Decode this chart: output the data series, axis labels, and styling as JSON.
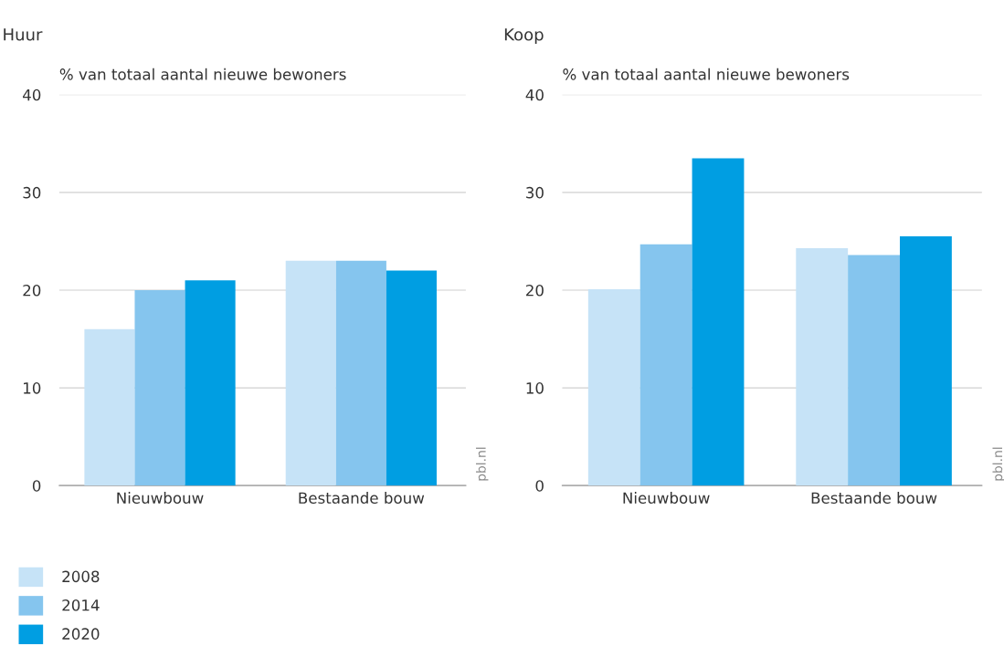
{
  "chart_data": [
    {
      "type": "bar",
      "title": "Huur",
      "ylabel": "% van totaal aantal nieuwe bewoners",
      "categories": [
        "Nieuwbouw",
        "Bestaande bouw"
      ],
      "series": [
        {
          "name": "2008",
          "color": "#c6e3f7",
          "values": [
            16,
            23
          ]
        },
        {
          "name": "2014",
          "color": "#85c5ee",
          "values": [
            20,
            23
          ]
        },
        {
          "name": "2020",
          "color": "#009ee2",
          "values": [
            21,
            22
          ]
        }
      ],
      "ylim": [
        0,
        40
      ],
      "yticks": [
        0,
        10,
        20,
        30,
        40
      ],
      "grid": "y",
      "legend": "bottom left",
      "annotations": [
        "pbl.nl"
      ]
    },
    {
      "type": "bar",
      "title": "Koop",
      "ylabel": "% van totaal aantal nieuwe bewoners",
      "categories": [
        "Nieuwbouw",
        "Bestaande bouw"
      ],
      "series": [
        {
          "name": "2008",
          "color": "#c6e3f7",
          "values": [
            20.1,
            24.3
          ]
        },
        {
          "name": "2014",
          "color": "#85c5ee",
          "values": [
            24.7,
            23.6
          ]
        },
        {
          "name": "2020",
          "color": "#009ee2",
          "values": [
            33.5,
            25.5
          ]
        }
      ],
      "ylim": [
        0,
        40
      ],
      "yticks": [
        0,
        10,
        20,
        30,
        40
      ],
      "grid": "y",
      "annotations": [
        "pbl.nl"
      ]
    }
  ]
}
